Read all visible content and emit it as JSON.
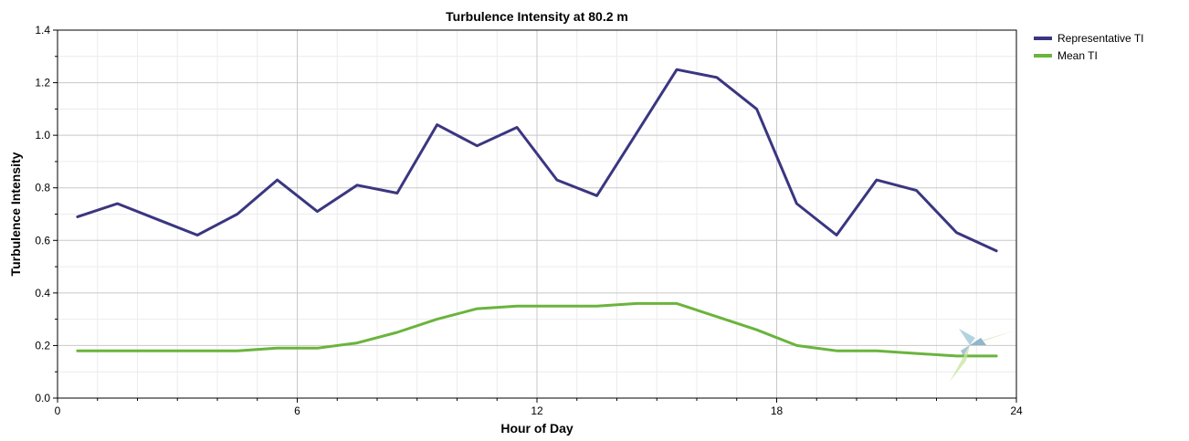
{
  "chart_data": {
    "type": "line",
    "title": "Turbulence Intensity at 80.2 m",
    "xlabel": "Hour of Day",
    "ylabel": "Turbulence Intensity",
    "xlim": [
      0,
      24
    ],
    "ylim": [
      0.0,
      1.4
    ],
    "x_ticks": [
      0,
      6,
      12,
      18,
      24
    ],
    "x_tick_labels": [
      "0",
      "6",
      "12",
      "18",
      "24"
    ],
    "y_ticks": [
      0.0,
      0.2,
      0.4,
      0.6,
      0.8,
      1.0,
      1.2,
      1.4
    ],
    "y_tick_labels": [
      "0.0",
      "0.2",
      "0.4",
      "0.6",
      "0.8",
      "1.0",
      "1.2",
      "1.4"
    ],
    "grid": true,
    "legend_position": "right",
    "x": [
      0.5,
      1.5,
      2.5,
      3.5,
      4.5,
      5.5,
      6.5,
      7.5,
      8.5,
      9.5,
      10.5,
      11.5,
      12.5,
      13.5,
      14.5,
      15.5,
      16.5,
      17.5,
      18.5,
      19.5,
      20.5,
      21.5,
      22.5,
      23.5
    ],
    "series": [
      {
        "name": "Representative TI",
        "color": "#3a3680",
        "values": [
          0.69,
          0.74,
          0.68,
          0.62,
          0.7,
          0.83,
          0.71,
          0.81,
          0.78,
          1.04,
          0.96,
          1.03,
          0.83,
          0.77,
          1.01,
          1.25,
          1.22,
          1.1,
          0.74,
          0.62,
          0.83,
          0.79,
          0.63,
          0.56
        ]
      },
      {
        "name": "Mean TI",
        "color": "#6ab43c",
        "values": [
          0.18,
          0.18,
          0.18,
          0.18,
          0.18,
          0.19,
          0.19,
          0.21,
          0.25,
          0.3,
          0.34,
          0.35,
          0.35,
          0.35,
          0.36,
          0.36,
          0.31,
          0.26,
          0.2,
          0.18,
          0.18,
          0.17,
          0.16,
          0.16
        ]
      }
    ]
  }
}
